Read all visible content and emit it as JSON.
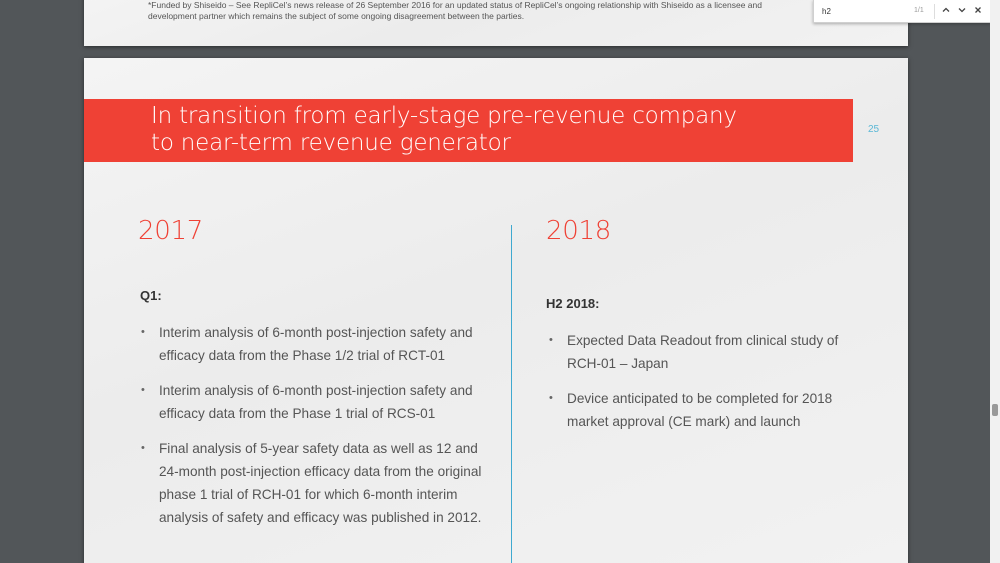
{
  "document": {
    "footnote": "*Funded by Shiseido – See RepliCel’s news release of 26 September 2016 for an updated status of RepliCel’s ongoing relationship with Shiseido as a licensee and development partner which remains the subject of some ongoing disagreement between the parties.",
    "slide": {
      "title_line1": "In transition from early-stage pre-revenue company",
      "title_line2": "to near-term revenue generator",
      "page_number": "25",
      "left": {
        "year": "2017",
        "period": "Q1:",
        "items": [
          "Interim analysis of 6-month post-injection safety and efficacy data from the Phase 1/2 trial of RCT-01",
          "Interim analysis of 6-month post-injection safety and efficacy data from the Phase 1 trial of RCS-01",
          "Final analysis of 5-year safety data as well as 12 and 24-month post-injection efficacy data from the original phase 1 trial of RCH-01 for which 6-month interim analysis of safety and efficacy was published in 2012."
        ]
      },
      "right": {
        "year": "2018",
        "period": "H2 2018:",
        "items": [
          "Expected Data Readout from clinical study of RCH-01 – Japan",
          "Device anticipated to be completed for 2018 market approval (CE mark) and launch"
        ]
      },
      "bullet_glyph": "•"
    }
  },
  "findbar": {
    "query": "h2",
    "count": "1/1",
    "prev_icon": "chevron-up-icon",
    "next_icon": "chevron-down-icon",
    "close_icon": "close-icon"
  },
  "colors": {
    "accent_red": "#ef4135",
    "divider_blue": "#3fa9d0",
    "viewer_background": "#525659"
  }
}
